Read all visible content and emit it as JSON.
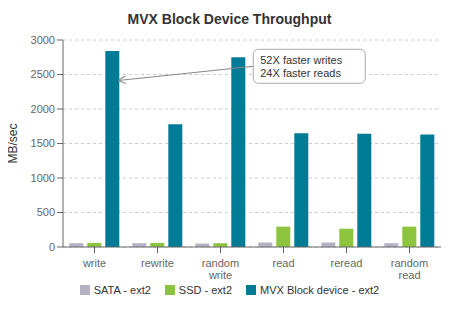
{
  "chart_data": {
    "type": "bar",
    "title": "MVX Block Device Throughput",
    "ylabel": "MB/sec",
    "categories": [
      "write",
      "rewrite",
      "random\nwrite",
      "read",
      "reread",
      "random\nread"
    ],
    "series": [
      {
        "name": "SATA - ext2",
        "color": "#b5b2c4",
        "values": [
          55,
          55,
          50,
          65,
          65,
          55
        ]
      },
      {
        "name": "SSD - ext2",
        "color": "#8dc43e",
        "values": [
          60,
          60,
          55,
          295,
          265,
          295
        ]
      },
      {
        "name": "MVX Block device - ext2",
        "color": "#007b96",
        "values": [
          2840,
          1780,
          2750,
          1650,
          1640,
          1630
        ]
      }
    ],
    "ylim": [
      0,
      3000
    ],
    "yticks": [
      0,
      500,
      1000,
      1500,
      2000,
      2500,
      3000
    ],
    "grid": true,
    "legend": "bottom",
    "annotations": [
      "52X faster writes\n24X faster reads"
    ]
  }
}
